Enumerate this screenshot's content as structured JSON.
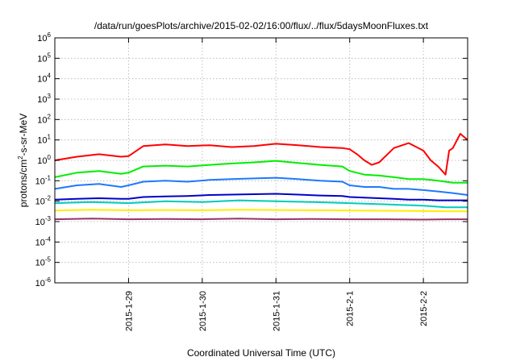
{
  "chart_data": {
    "type": "line",
    "title": "/data/run/goesPlots/archive/2015-02-02/16:00/flux/../flux/5daysMoonFluxes.txt",
    "xlabel": "Coordinated Universal Time (UTC)",
    "ylabel": "protons/cm²-s-sr-MeV",
    "ylabel_main": "protons/cm",
    "ylabel_sup": "2",
    "ylabel_rest": "-s-sr-MeV",
    "xlim": [
      0,
      5.6
    ],
    "x_units": "days after 2015-01-28 00:00 UTC",
    "ylim": [
      1e-06,
      1000000.0
    ],
    "yscale": "log",
    "grid": true,
    "y_ticks": [
      {
        "value": 1e-06,
        "base": "10",
        "exp": "-6"
      },
      {
        "value": 1e-05,
        "base": "10",
        "exp": "-5"
      },
      {
        "value": 0.0001,
        "base": "10",
        "exp": "-4"
      },
      {
        "value": 0.001,
        "base": "10",
        "exp": "-3"
      },
      {
        "value": 0.01,
        "base": "10",
        "exp": "-2"
      },
      {
        "value": 0.1,
        "base": "10",
        "exp": "-1"
      },
      {
        "value": 1,
        "base": "10",
        "exp": "0"
      },
      {
        "value": 10,
        "base": "10",
        "exp": "1"
      },
      {
        "value": 100,
        "base": "10",
        "exp": "2"
      },
      {
        "value": 1000,
        "base": "10",
        "exp": "3"
      },
      {
        "value": 10000,
        "base": "10",
        "exp": "4"
      },
      {
        "value": 100000,
        "base": "10",
        "exp": "5"
      },
      {
        "value": 1000000,
        "base": "10",
        "exp": "6"
      }
    ],
    "x_ticks": [
      {
        "value": 1,
        "label": "2015-1-29"
      },
      {
        "value": 2,
        "label": "2015-1-30"
      },
      {
        "value": 3,
        "label": "2015-1-31"
      },
      {
        "value": 4,
        "label": "2015-2-1"
      },
      {
        "value": 5,
        "label": "2015-2-2"
      }
    ],
    "series": [
      {
        "color": "#ff0000",
        "x": [
          0,
          0.3,
          0.6,
          0.9,
          1.0,
          1.2,
          1.5,
          1.8,
          2.1,
          2.4,
          2.7,
          3.0,
          3.3,
          3.6,
          3.9,
          4.0,
          4.1,
          4.2,
          4.3,
          4.4,
          4.6,
          4.8,
          5.0,
          5.1,
          5.2,
          5.3,
          5.35,
          5.4,
          5.5,
          5.6
        ],
        "y": [
          1.0,
          1.5,
          2.0,
          1.5,
          1.6,
          5.0,
          6.0,
          5.0,
          5.5,
          4.5,
          5.0,
          6.5,
          5.5,
          4.5,
          4.0,
          3.5,
          2.0,
          1.0,
          0.6,
          0.8,
          4.0,
          7.0,
          3.0,
          1.0,
          0.5,
          0.2,
          3.0,
          4.0,
          20,
          10
        ]
      },
      {
        "color": "#00ee00",
        "x": [
          0,
          0.3,
          0.6,
          0.9,
          1.0,
          1.2,
          1.5,
          1.8,
          2.1,
          2.4,
          2.7,
          3.0,
          3.3,
          3.6,
          3.9,
          4.0,
          4.2,
          4.4,
          4.6,
          4.8,
          5.0,
          5.2,
          5.4,
          5.6
        ],
        "y": [
          0.15,
          0.25,
          0.3,
          0.22,
          0.25,
          0.5,
          0.55,
          0.5,
          0.6,
          0.7,
          0.8,
          0.95,
          0.75,
          0.6,
          0.5,
          0.3,
          0.2,
          0.18,
          0.15,
          0.12,
          0.12,
          0.1,
          0.08,
          0.08
        ]
      },
      {
        "color": "#1e78ff",
        "x": [
          0,
          0.3,
          0.6,
          0.9,
          1.0,
          1.2,
          1.5,
          1.8,
          2.1,
          2.4,
          2.7,
          3.0,
          3.3,
          3.6,
          3.9,
          4.0,
          4.2,
          4.4,
          4.6,
          4.8,
          5.0,
          5.2,
          5.4,
          5.6
        ],
        "y": [
          0.04,
          0.06,
          0.07,
          0.05,
          0.06,
          0.09,
          0.1,
          0.09,
          0.11,
          0.12,
          0.13,
          0.14,
          0.12,
          0.1,
          0.09,
          0.06,
          0.05,
          0.05,
          0.04,
          0.04,
          0.035,
          0.03,
          0.025,
          0.02
        ]
      },
      {
        "color": "#0000cc",
        "x": [
          0,
          0.3,
          0.6,
          0.9,
          1.0,
          1.2,
          1.5,
          1.8,
          2.1,
          2.4,
          2.7,
          3.0,
          3.3,
          3.6,
          3.9,
          4.0,
          4.2,
          4.4,
          4.6,
          4.8,
          5.0,
          5.2,
          5.4,
          5.6
        ],
        "y": [
          0.012,
          0.013,
          0.014,
          0.013,
          0.013,
          0.016,
          0.017,
          0.018,
          0.02,
          0.021,
          0.022,
          0.023,
          0.021,
          0.019,
          0.018,
          0.016,
          0.015,
          0.014,
          0.013,
          0.012,
          0.012,
          0.011,
          0.011,
          0.011
        ]
      },
      {
        "color": "#00ccbb",
        "x": [
          0,
          0.5,
          1.0,
          1.5,
          2.0,
          2.5,
          3.0,
          3.5,
          4.0,
          4.5,
          5.0,
          5.3,
          5.6
        ],
        "y": [
          0.008,
          0.009,
          0.008,
          0.01,
          0.009,
          0.011,
          0.01,
          0.009,
          0.008,
          0.007,
          0.006,
          0.005,
          0.005
        ]
      },
      {
        "color": "#ffee00",
        "x": [
          0,
          0.5,
          1.0,
          1.5,
          2.0,
          2.5,
          3.0,
          3.5,
          4.0,
          4.5,
          5.0,
          5.3,
          5.6
        ],
        "y": [
          0.0035,
          0.0038,
          0.0036,
          0.0037,
          0.0036,
          0.0038,
          0.0037,
          0.0036,
          0.0035,
          0.0034,
          0.0033,
          0.0032,
          0.0032
        ]
      },
      {
        "color": "#993366",
        "x": [
          0,
          0.5,
          1.0,
          1.5,
          2.0,
          2.5,
          3.0,
          3.5,
          4.0,
          4.5,
          5.0,
          5.3,
          5.6
        ],
        "y": [
          0.0013,
          0.0014,
          0.0013,
          0.00135,
          0.0013,
          0.0014,
          0.0013,
          0.00135,
          0.0013,
          0.0013,
          0.00125,
          0.0013,
          0.0013
        ]
      }
    ]
  }
}
